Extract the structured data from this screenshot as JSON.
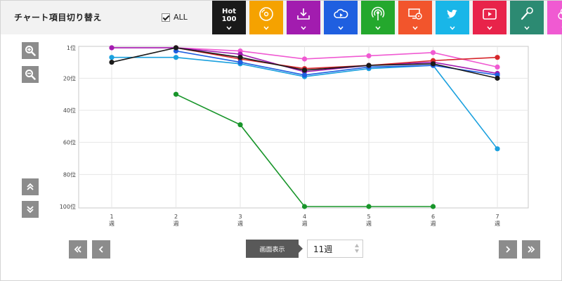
{
  "header": {
    "title": "チャート項目切り替え",
    "all_label": "ALL",
    "all_checked": true
  },
  "tabs": [
    {
      "name": "hot100",
      "line1": "Hot",
      "line2": "100",
      "color": "#1a1a1a",
      "icon": "hot100-text"
    },
    {
      "name": "cd-sales",
      "color": "#f5a200",
      "icon": "cd-icon"
    },
    {
      "name": "download",
      "color": "#a21caf",
      "icon": "download-icon"
    },
    {
      "name": "streaming",
      "color": "#1f5fe0",
      "icon": "cloud-play-icon"
    },
    {
      "name": "radio",
      "color": "#24a82d",
      "icon": "radio-broadcast-icon"
    },
    {
      "name": "lookup",
      "color": "#f2552c",
      "icon": "pc-cd-icon"
    },
    {
      "name": "twitter",
      "color": "#19b6e8",
      "icon": "twitter-icon"
    },
    {
      "name": "video",
      "color": "#e8234a",
      "icon": "video-play-icon"
    },
    {
      "name": "karaoke",
      "color": "#2c8a72",
      "icon": "microphone-icon"
    },
    {
      "name": "gyao",
      "color": "#f05ad2",
      "icon": "circles-icon"
    }
  ],
  "chart_data": {
    "type": "line",
    "x_ticks": [
      {
        "num": "1",
        "unit": "週"
      },
      {
        "num": "2",
        "unit": "週"
      },
      {
        "num": "3",
        "unit": "週"
      },
      {
        "num": "4",
        "unit": "週"
      },
      {
        "num": "5",
        "unit": "週"
      },
      {
        "num": "6",
        "unit": "週"
      },
      {
        "num": "7",
        "unit": "週"
      }
    ],
    "y_ticks": [
      "1位",
      "20位",
      "40位",
      "60位",
      "80位",
      "100位"
    ],
    "y_range": [
      1,
      100
    ],
    "y_inverted": true,
    "grid": true,
    "series": [
      {
        "color": "#f05ad2",
        "values": [
          1,
          1,
          3,
          8,
          6,
          4,
          13
        ]
      },
      {
        "color": "#a21caf",
        "values": [
          1,
          1,
          5,
          16,
          12,
          10,
          17
        ]
      },
      {
        "color": "#d6262a",
        "values": [
          null,
          1,
          8,
          14,
          12,
          9,
          7
        ]
      },
      {
        "color": "#1aa0de",
        "values": [
          7,
          7,
          11,
          19,
          14,
          12,
          64
        ]
      },
      {
        "color": "#1f5fe0",
        "values": [
          null,
          3,
          10,
          18,
          13,
          12,
          18
        ]
      },
      {
        "color": "#1a1a1a",
        "values": [
          10,
          1,
          7,
          15,
          12,
          11,
          20
        ]
      },
      {
        "color": "#18952a",
        "values": [
          null,
          30,
          49,
          100,
          100,
          100,
          null
        ]
      }
    ]
  },
  "pager": {
    "display_label": "画面表示",
    "weeks_value": "11週"
  }
}
